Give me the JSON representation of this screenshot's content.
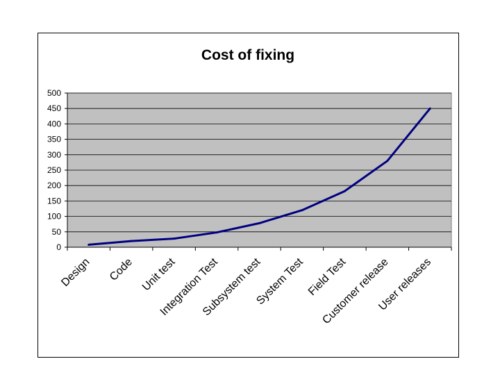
{
  "chart_data": {
    "type": "line",
    "title": "Cost of fixing",
    "xlabel": "",
    "ylabel": "",
    "categories": [
      "Design",
      "Code",
      "Unit test",
      "Integration Test",
      "Subsystem test",
      "System Test",
      "Field Test",
      "Customer release",
      "User releases"
    ],
    "series": [
      {
        "values": [
          8,
          20,
          28,
          48,
          78,
          120,
          182,
          280,
          450
        ]
      }
    ],
    "ylim": [
      0,
      500
    ],
    "yticks": [
      0,
      50,
      100,
      150,
      200,
      250,
      300,
      350,
      400,
      450,
      500
    ],
    "grid": true,
    "legend": "none",
    "colors": {
      "plot_background": "#c0c0c0",
      "line": "#000080",
      "gridline": "#000000"
    }
  }
}
